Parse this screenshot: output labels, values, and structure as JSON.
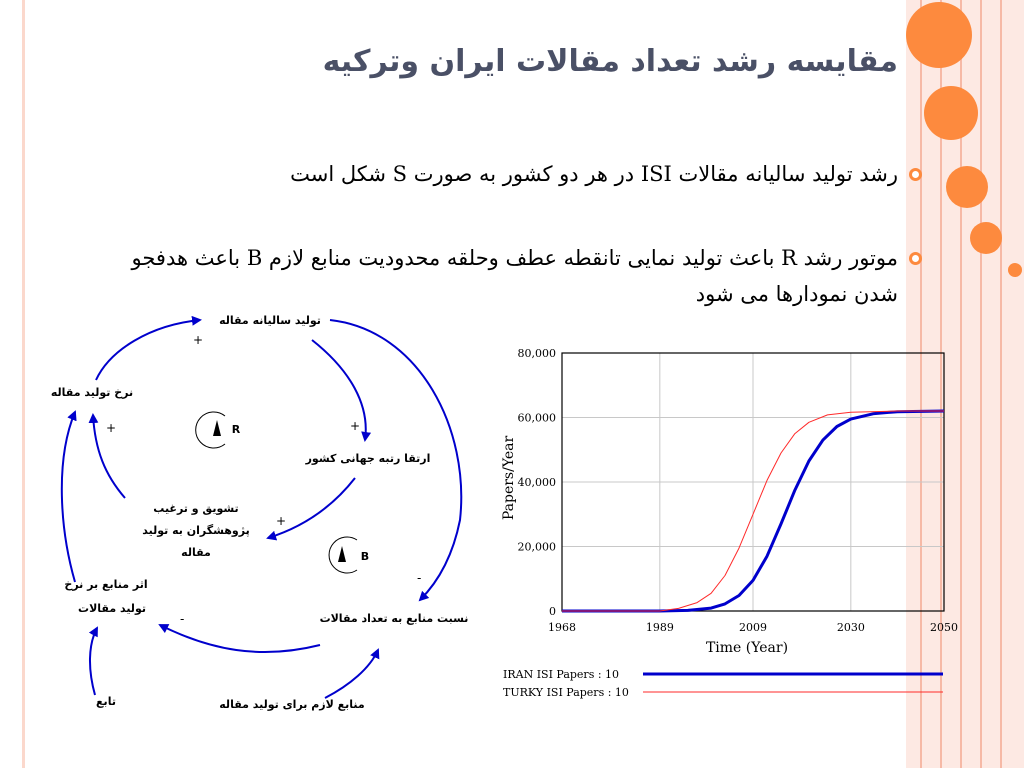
{
  "slide": {
    "title": "مقایسه رشد تعداد مقالات ایران وترکیه",
    "bullets": [
      "رشد تولید سالیانه مقالات ISI در هر دو کشور به صورت S شکل است",
      "موتور رشد R باعث تولید نمایی تانقطه عطف وحلقه محدودیت منابع لازم B باعث هدفجو شدن نمودارها می شود"
    ],
    "accent_color": "#fd8a3e",
    "title_color": "#4a5066"
  },
  "diagram": {
    "nodes": {
      "annual_production": "تولید سالیانه مقاله",
      "production_rate": "نرخ تولید مقاله",
      "global_rank": "ارتقا رتبه جهانی کشور",
      "encouragement": [
        "تشویق و ترغیب",
        "پژوهشگران به تولید",
        "مقاله"
      ],
      "resource_effect": [
        "اثر منابع بر نرخ",
        "تولید مقالات"
      ],
      "resource_ratio": "نسبت منابع به تعداد مقالات",
      "required_resources": "منابع لازم برای تولید مقاله",
      "function": "تابع"
    },
    "loops": {
      "reinforcing": "R",
      "balancing": "B"
    },
    "polarities": {
      "positive": "+",
      "negative": "-"
    },
    "arrow_color": "#0000cc"
  },
  "chart_data": {
    "type": "line",
    "xlabel": "Time (Year)",
    "ylabel": "Papers/Year",
    "x_ticks": [
      "1968",
      "1989",
      "2009",
      "2030",
      "2050"
    ],
    "y_ticks": [
      "0",
      "20,000",
      "40,000",
      "60,000",
      "80,000"
    ],
    "xlim": [
      1968,
      2050
    ],
    "ylim": [
      0,
      80000
    ],
    "grid": true,
    "legend_position": "bottom",
    "series": [
      {
        "name": "IRAN ISI Papers : 10",
        "color": "#0000cc",
        "x": [
          1968,
          1989,
          1995,
          2000,
          2003,
          2006,
          2009,
          2012,
          2015,
          2018,
          2021,
          2024,
          2027,
          2030,
          2035,
          2040,
          2050
        ],
        "y": [
          0,
          0,
          200,
          900,
          2200,
          4800,
          9500,
          17000,
          27000,
          37500,
          46500,
          53000,
          57200,
          59500,
          61200,
          61800,
          62000
        ]
      },
      {
        "name": "TURKY ISI Papers : 10",
        "color": "#ff2a2a",
        "x": [
          1968,
          1989,
          1993,
          1997,
          2000,
          2003,
          2006,
          2009,
          2012,
          2015,
          2018,
          2021,
          2025,
          2030,
          2040,
          2050
        ],
        "y": [
          0,
          0,
          800,
          2600,
          5500,
          11000,
          19500,
          30000,
          40500,
          49000,
          55000,
          58500,
          60800,
          61600,
          62000,
          62000
        ]
      }
    ]
  }
}
